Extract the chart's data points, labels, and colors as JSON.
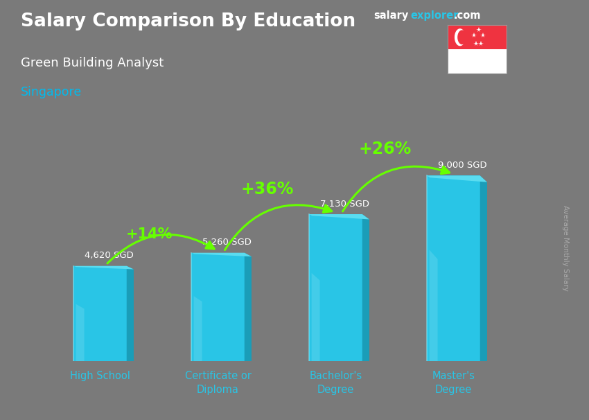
{
  "title_bold": "Salary Comparison By Education",
  "subtitle1": "Green Building Analyst",
  "subtitle2": "Singapore",
  "categories": [
    "High School",
    "Certificate or\nDiploma",
    "Bachelor's\nDegree",
    "Master's\nDegree"
  ],
  "values": [
    4620,
    5260,
    7130,
    9000
  ],
  "value_labels": [
    "4,620 SGD",
    "5,260 SGD",
    "7,130 SGD",
    "9,000 SGD"
  ],
  "pct_labels": [
    "+14%",
    "+36%",
    "+26%"
  ],
  "bar_color": "#29c5e6",
  "bar_shade_right": "#1a9db8",
  "bar_shade_dark": "#0e6070",
  "bar_top_light": "#5adcf0",
  "bg_color": "#7a7a7a",
  "overlay_color": "#555555",
  "title_color": "#ffffff",
  "subtitle1_color": "#ffffff",
  "subtitle2_color": "#00bbee",
  "value_label_color": "#ffffff",
  "pct_color": "#66ff00",
  "arrow_color": "#66ff00",
  "xtick_color": "#29c5e6",
  "ylabel_text": "Average Monthly Salary",
  "ylabel_color": "#aaaaaa",
  "site_salary_color": "#ffffff",
  "site_explorer_color": "#29c5e6",
  "site_com_color": "#ffffff",
  "ylim": [
    0,
    11000
  ],
  "bar_width": 0.45,
  "x_positions": [
    0,
    1,
    2,
    3
  ]
}
